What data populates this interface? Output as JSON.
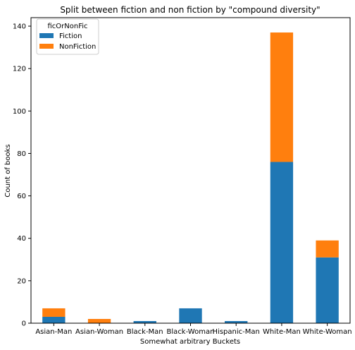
{
  "chart_data": {
    "type": "bar",
    "stacked": true,
    "title": "Split between fiction and non fiction by \"compound diversity\"",
    "xlabel": "Somewhat arbitrary Buckets",
    "ylabel": "Count of books",
    "categories": [
      "Asian-Man",
      "Asian-Woman",
      "Black-Man",
      "Black-Woman",
      "Hispanic-Man",
      "White-Man",
      "White-Woman"
    ],
    "series": [
      {
        "name": "Fiction",
        "color": "#1f77b4",
        "values": [
          3,
          0,
          1,
          7,
          1,
          76,
          31
        ]
      },
      {
        "name": "NonFiction",
        "color": "#ff7f0e",
        "values": [
          4,
          2,
          0,
          0,
          0,
          61,
          8
        ]
      }
    ],
    "ylim": [
      0,
      144
    ],
    "yticks": [
      0,
      20,
      40,
      60,
      80,
      100,
      120,
      140
    ],
    "grid": false,
    "legend": {
      "title": "ficOrNonFic",
      "placement": "top-left"
    }
  }
}
